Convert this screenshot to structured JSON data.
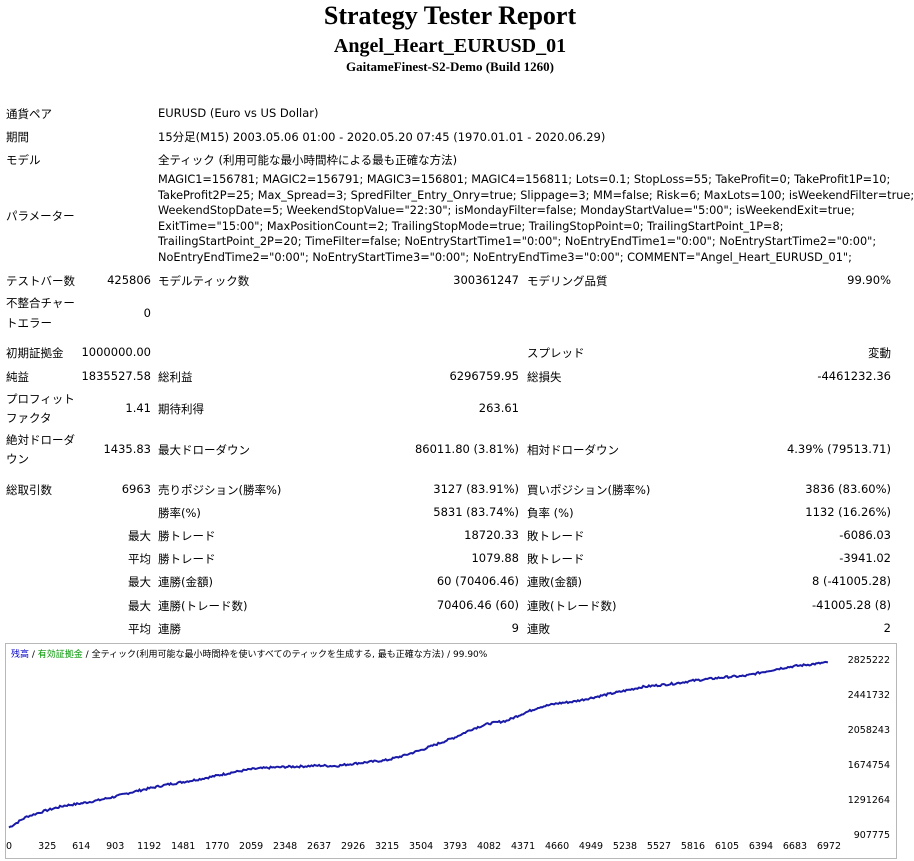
{
  "header": {
    "title": "Strategy Tester Report",
    "ea_name": "Angel_Heart_EURUSD_01",
    "server": "GaitameFinest-S2-Demo (Build 1260)"
  },
  "info": {
    "symbol_label": "通貨ペア",
    "symbol_value": "EURUSD (Euro vs US Dollar)",
    "period_label": "期間",
    "period_value": "15分足(M15) 2003.05.06 01:00 - 2020.05.20 07:45 (1970.01.01 - 2020.06.29)",
    "model_label": "モデル",
    "model_value": "全ティック (利用可能な最小時間枠による最も正確な方法)",
    "params_label": "パラメーター",
    "params_lines": [
      "MAGIC1=156781; MAGIC2=156791; MAGIC3=156801; MAGIC4=156811; Lots=0.1; StopLoss=55; TakeProfit=0; TakeProfit1P=10;",
      "TakeProfit2P=25; Max_Spread=3; SpredFilter_Entry_Onry=true; Slippage=3; MM=false; Risk=6; MaxLots=100; isWeekendFilter=true;",
      "WeekendStopDate=5; WeekendStopValue=\"22:30\"; isMondayFilter=false; MondayStartValue=\"5:00\"; isWeekendExit=true;",
      "ExitTime=\"15:00\"; MaxPositionCount=2; TrailingStopMode=true; TrailingStopPoint=0; TrailingStartPoint_1P=8;",
      "TrailingStartPoint_2P=20; TimeFilter=false; NoEntryStartTime1=\"0:00\"; NoEntryEndTime1=\"0:00\"; NoEntryStartTime2=\"0:00\";",
      "NoEntryEndTime2=\"0:00\"; NoEntryStartTime3=\"0:00\"; NoEntryEndTime3=\"0:00\"; COMMENT=\"Angel_Heart_EURUSD_01\";"
    ]
  },
  "stats": {
    "bars_label": "テストバー数",
    "bars_value": "425806",
    "ticks_label": "モデルティック数",
    "ticks_value": "300361247",
    "quality_label": "モデリング品質",
    "quality_value": "99.90%",
    "mismatch_label_1": "不整合チャー",
    "mismatch_label_2": "トエラー",
    "mismatch_value": "0",
    "deposit_label": "初期証拠金",
    "deposit_value": "1000000.00",
    "spread_label": "スプレッド",
    "spread_value": "変動",
    "netprofit_label": "純益",
    "netprofit_value": "1835527.58",
    "grossprofit_label": "総利益",
    "grossprofit_value": "6296759.95",
    "grossloss_label": "総損失",
    "grossloss_value": "-4461232.36",
    "pf_label_1": "プロフィット",
    "pf_label_2": "ファクタ",
    "pf_value": "1.41",
    "expected_label": "期待利得",
    "expected_value": "263.61",
    "absdd_label_1": "絶対ドローダ",
    "absdd_label_2": "ウン",
    "absdd_value": "1435.83",
    "maxdd_label": "最大ドローダウン",
    "maxdd_value": "86011.80 (3.81%)",
    "reldd_label": "相対ドローダウン",
    "reldd_value": "4.39% (79513.71)",
    "trades_label": "総取引数",
    "trades_value": "6963",
    "short_label": "売りポジション(勝率%)",
    "short_value": "3127 (83.91%)",
    "long_label": "買いポジション(勝率%)",
    "long_value": "3836 (83.60%)",
    "win_label": "勝率(%)",
    "win_value": "5831 (83.74%)",
    "loss_label": "負率 (%)",
    "loss_value": "1132 (16.26%)",
    "max_prefix": "最大",
    "avg_prefix": "平均",
    "maxwin_label": "勝トレード",
    "maxwin_value": "18720.33",
    "maxloss_label": "敗トレード",
    "maxloss_value": "-6086.03",
    "avgwin_label": "勝トレード",
    "avgwin_value": "1079.88",
    "avgloss_label": "敗トレード",
    "avgloss_value": "-3941.02",
    "maxconswin_label": "連勝(金額)",
    "maxconswin_value": "60 (70406.46)",
    "maxconsloss_label": "連敗(金額)",
    "maxconsloss_value": "8 (-41005.28)",
    "maxconsprofit_label": "連勝(トレード数)",
    "maxconsprofit_value": "70406.46 (60)",
    "maxconslossamt_label": "連敗(トレード数)",
    "maxconslossamt_value": "-41005.28 (8)",
    "avgconswin_label": "連勝",
    "avgconswin_value": "9",
    "avgconsloss_label": "連敗",
    "avgconsloss_value": "2"
  },
  "chart_legend": {
    "balance": "残高",
    "sep1": " / ",
    "equity": "有効証拠金",
    "sep2": " / ",
    "model": "全ティック(利用可能な最小時間枠を使いすべてのティックを生成する, 最も正確な方法)",
    "sep3": " / ",
    "quality": "99.90%"
  },
  "colors": {
    "line": "#1a1aa8",
    "legend_balance": "#0000c8",
    "legend_equity": "#009600"
  },
  "chart_data": {
    "type": "line",
    "x_ticks": [
      "0",
      "325",
      "614",
      "903",
      "1192",
      "1481",
      "1770",
      "2059",
      "2348",
      "2637",
      "2926",
      "3215",
      "3504",
      "3793",
      "4082",
      "4371",
      "4660",
      "4949",
      "5238",
      "5527",
      "5816",
      "6105",
      "6394",
      "6683",
      "6972"
    ],
    "y_ticks": [
      "2825222",
      "2441732",
      "2058243",
      "1674754",
      "1291264",
      "907775"
    ],
    "ylim": [
      907775,
      2825222
    ],
    "xlim": [
      0,
      7100
    ],
    "series": [
      {
        "x": [
          0,
          150,
          325,
          470,
          614,
          760,
          903,
          1050,
          1192,
          1340,
          1481,
          1620,
          1770,
          1900,
          2059,
          2200,
          2348,
          2480,
          2637,
          2780,
          2926,
          3070,
          3215,
          3360,
          3504,
          3650,
          3793,
          3940,
          4082,
          4230,
          4371,
          4510,
          4660,
          4800,
          4949,
          5090,
          5238,
          5380,
          5527,
          5670,
          5816,
          5960,
          6105,
          6250,
          6394,
          6540,
          6683,
          6830,
          6963
        ],
        "y": [
          1000000,
          1120000,
          1190000,
          1240000,
          1265000,
          1300000,
          1340000,
          1390000,
          1430000,
          1470000,
          1500000,
          1530000,
          1570000,
          1605000,
          1640000,
          1655000,
          1665000,
          1670000,
          1680000,
          1675000,
          1700000,
          1720000,
          1740000,
          1790000,
          1850000,
          1920000,
          1990000,
          2080000,
          2140000,
          2170000,
          2250000,
          2320000,
          2360000,
          2380000,
          2420000,
          2460000,
          2500000,
          2540000,
          2560000,
          2580000,
          2610000,
          2630000,
          2650000,
          2660000,
          2700000,
          2740000,
          2770000,
          2790000,
          2810000
        ]
      }
    ]
  }
}
